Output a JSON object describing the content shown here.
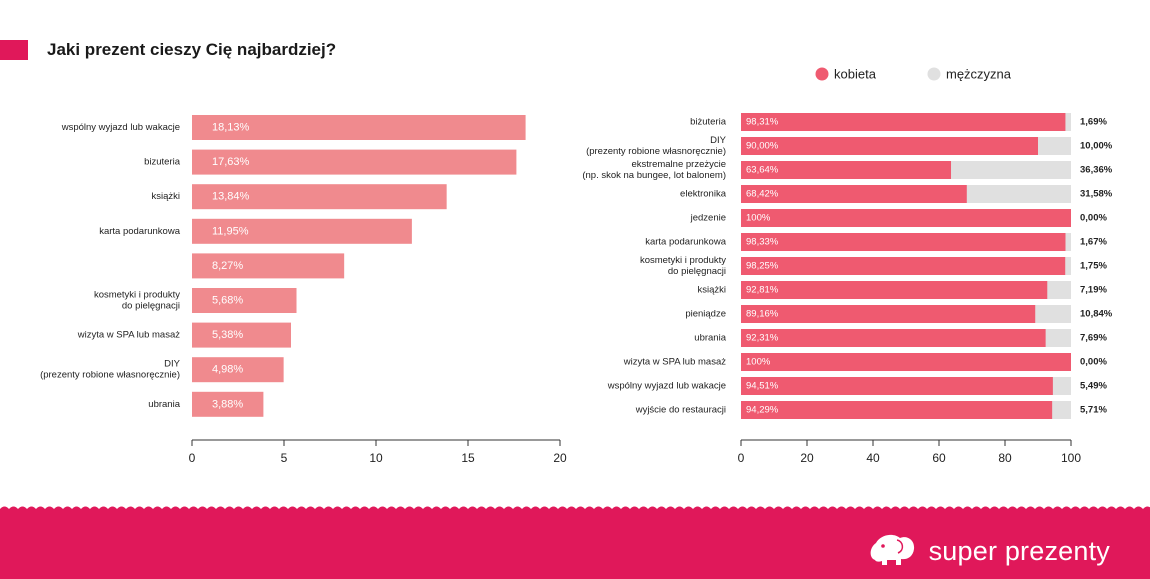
{
  "title": "Jaki prezent cieszy Cię najbardziej?",
  "brand": {
    "name": "super prezenty",
    "icon": "elephant-icon"
  },
  "colors": {
    "accent": "#e0185a",
    "bar": "#f08a8e",
    "female": "#ef5a70",
    "male": "#e0e0e0"
  },
  "chart_data": [
    {
      "type": "bar",
      "orientation": "horizontal",
      "categories": [
        "wspólny wyjazd lub wakacje",
        "bizuteria",
        "książki",
        "karta podarunkowa",
        "",
        "kosmetyki i produkty\ndo pielęgnacji",
        "wizyta w SPA lub masaż",
        "DIY\n(prezenty robione własnoręcznie)",
        "ubrania"
      ],
      "values": [
        18.13,
        17.63,
        13.84,
        11.95,
        8.27,
        5.68,
        5.38,
        4.98,
        3.88
      ],
      "value_labels": [
        "18,13%",
        "17,63%",
        "13,84%",
        "11,95%",
        "8,27%",
        "5,68%",
        "5,38%",
        "4,98%",
        "3,88%"
      ],
      "xlim": [
        0,
        20
      ],
      "xticks": [
        "0",
        "5",
        "10",
        "15",
        "20"
      ]
    },
    {
      "type": "bar",
      "orientation": "horizontal",
      "stacked": true,
      "legend": {
        "placement": "top",
        "items": [
          "kobieta",
          "mężczyzna"
        ]
      },
      "categories": [
        "biżuteria",
        "DIY\n(prezenty robione własnoręcznie)",
        "ekstremalne przeżycie\n(np. skok na bungee, lot balonem)",
        "elektronika",
        "jedzenie",
        "karta podarunkowa",
        "kosmetyki i produkty\ndo pielęgnacji",
        "książki",
        "pieniądze",
        "ubrania",
        "wizyta w SPA lub masaż",
        "wspólny wyjazd lub wakacje",
        "wyjście do restauracji"
      ],
      "series": [
        {
          "name": "kobieta",
          "values": [
            98.31,
            90.0,
            63.64,
            68.42,
            100,
            98.33,
            98.25,
            92.81,
            89.16,
            92.31,
            100,
            94.51,
            94.29
          ],
          "labels": [
            "98,31%",
            "90,00%",
            "63,64%",
            "68,42%",
            "100%",
            "98,33%",
            "98,25%",
            "92,81%",
            "89,16%",
            "92,31%",
            "100%",
            "94,51%",
            "94,29%"
          ]
        },
        {
          "name": "mężczyzna",
          "values": [
            1.69,
            10.0,
            36.36,
            31.58,
            0,
            1.67,
            1.75,
            7.19,
            10.84,
            7.69,
            0,
            5.49,
            5.71
          ],
          "labels": [
            "1,69%",
            "10,00%",
            "36,36%",
            "31,58%",
            "0,00%",
            "1,67%",
            "1,75%",
            "7,19%",
            "10,84%",
            "7,69%",
            "0,00%",
            "5,49%",
            "5,71%"
          ]
        }
      ],
      "xlim": [
        0,
        100
      ],
      "xticks": [
        "0",
        "20",
        "40",
        "60",
        "80",
        "100"
      ]
    }
  ]
}
